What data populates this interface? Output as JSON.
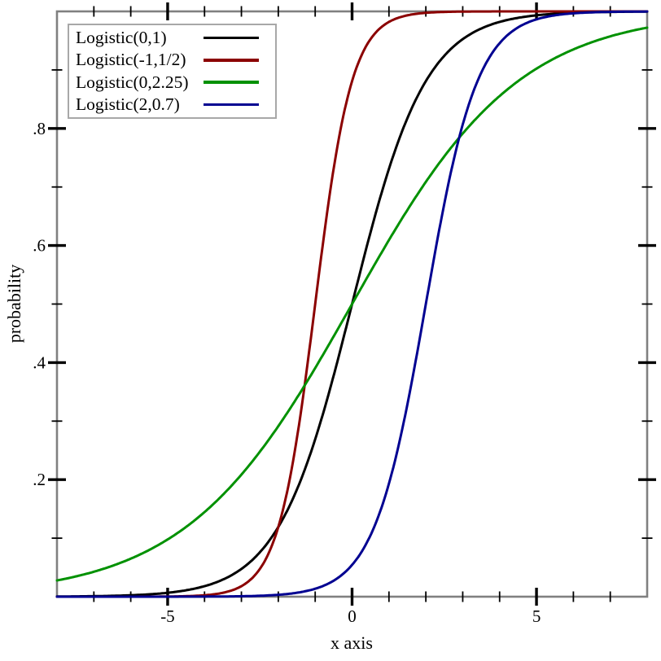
{
  "chart_data": {
    "type": "line",
    "title": "",
    "xlabel": "x axis",
    "ylabel": "probability",
    "xlim": [
      -8,
      8
    ],
    "ylim": [
      0,
      1
    ],
    "grid": false,
    "legend_position": "top-left",
    "frame_color": "#808080",
    "tick_color": "#000000",
    "x_major_ticks": [
      {
        "v": -5,
        "label": "-5"
      },
      {
        "v": 0,
        "label": "0"
      },
      {
        "v": 5,
        "label": "5"
      }
    ],
    "x_minor_step": 1,
    "y_major_ticks": [
      {
        "v": 0.2,
        "label": ".2"
      },
      {
        "v": 0.4,
        "label": ".4"
      },
      {
        "v": 0.6,
        "label": ".6"
      },
      {
        "v": 0.8,
        "label": ".8"
      }
    ],
    "y_minor_step": 0.1,
    "series": [
      {
        "label": "Logistic(0,1)",
        "color": "#000000",
        "distribution": "logistic-cdf",
        "mu": 0,
        "s": 1
      },
      {
        "label": "Logistic(-1,1/2)",
        "color": "#8b0000",
        "distribution": "logistic-cdf",
        "mu": -1,
        "s": 0.5
      },
      {
        "label": "Logistic(0,2.25)",
        "color": "#009100",
        "distribution": "logistic-cdf",
        "mu": 0,
        "s": 2.25
      },
      {
        "label": "Logistic(2,0.7)",
        "color": "#000091",
        "distribution": "logistic-cdf",
        "mu": 2,
        "s": 0.7
      }
    ]
  }
}
